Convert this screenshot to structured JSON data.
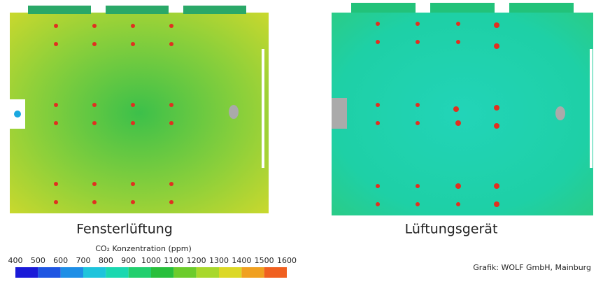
{
  "panels": [
    {
      "caption": "Fensterlüftung"
    },
    {
      "caption": "Lüftungsgerät"
    }
  ],
  "colorbar": {
    "title": "CO₂ Konzentration (ppm)",
    "ticks": [
      400,
      500,
      600,
      700,
      800,
      900,
      1000,
      1100,
      1200,
      1300,
      1400,
      1500,
      1600
    ],
    "colors": [
      "#1a1ad8",
      "#1e55e2",
      "#1e8ee6",
      "#1ec4dc",
      "#1ad8b0",
      "#22cf6e",
      "#28bf3c",
      "#6ccc2c",
      "#a8d82c",
      "#dcd826",
      "#f0a020",
      "#f06020"
    ]
  },
  "credit": "Grafik: WOLF GmbH, Mainburg"
}
